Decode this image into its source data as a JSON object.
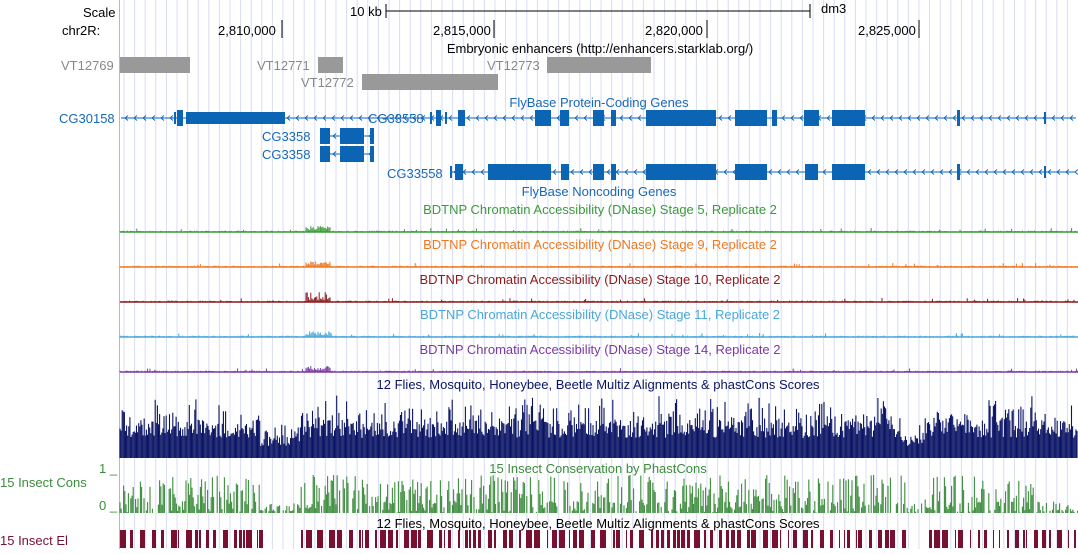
{
  "colors": {
    "gene": "#0c64b4",
    "gene_label": "#1868b8",
    "enhancer": "#999999",
    "enhancer_label": "#888888",
    "stage5": "#3a9a3a",
    "stage9": "#f07820",
    "stage10": "#8b1a1a",
    "stage11": "#4aa8d8",
    "stage14": "#7a3aa0",
    "multiz": "#0a1464",
    "phastcons": "#3c8c3c",
    "elements": "#7a1030",
    "grid": "#d8dcf4",
    "left_border": "#f3a0a0"
  },
  "ruler": {
    "scale_label": "Scale",
    "scale_value": "10 kb",
    "assembly": "dm3",
    "chrom_label": "chr2R:",
    "ticks": [
      "2,810,000",
      "2,815,000",
      "2,820,000",
      "2,825,000"
    ]
  },
  "tracks": {
    "enhancers": {
      "title": "Embryonic enhancers (http://enhancers.starklab.org/)",
      "items": [
        {
          "name": "VT12769"
        },
        {
          "name": "VT12771"
        },
        {
          "name": "VT12772"
        },
        {
          "name": "VT12773"
        }
      ]
    },
    "coding_genes": {
      "title": "FlyBase Protein-Coding Genes",
      "items": [
        "CG30158",
        "CG33558",
        "CG3358",
        "CG3358"
      ]
    },
    "noncoding_genes": {
      "title": "FlyBase Noncoding Genes",
      "items": [
        "CG33558"
      ]
    },
    "dnase": [
      {
        "title": "BDTNP Chromatin Accessibility (DNase) Stage 5, Replicate 2",
        "key": "stage5"
      },
      {
        "title": "BDTNP Chromatin Accessibility (DNase) Stage 9, Replicate 2",
        "key": "stage9"
      },
      {
        "title": "BDTNP Chromatin Accessibility (DNase) Stage 10, Replicate 2",
        "key": "stage10"
      },
      {
        "title": "BDTNP Chromatin Accessibility (DNase) Stage 11, Replicate 2",
        "key": "stage11"
      },
      {
        "title": "BDTNP Chromatin Accessibility (DNase) Stage 14, Replicate 2",
        "key": "stage14"
      }
    ],
    "multiz": {
      "title": "12 Flies, Mosquito, Honeybee, Beetle Multiz Alignments & phastCons Scores"
    },
    "phastcons": {
      "title": "15 Insect Conservation by PhastCons",
      "side_label": "15 Insect Cons",
      "y_max": "1 _",
      "y_min": "0 _"
    },
    "elements": {
      "title": "12 Flies, Mosquito, Honeybee, Beetle Multiz Alignments & phastCons Scores",
      "side_label": "15 Insect El"
    }
  }
}
